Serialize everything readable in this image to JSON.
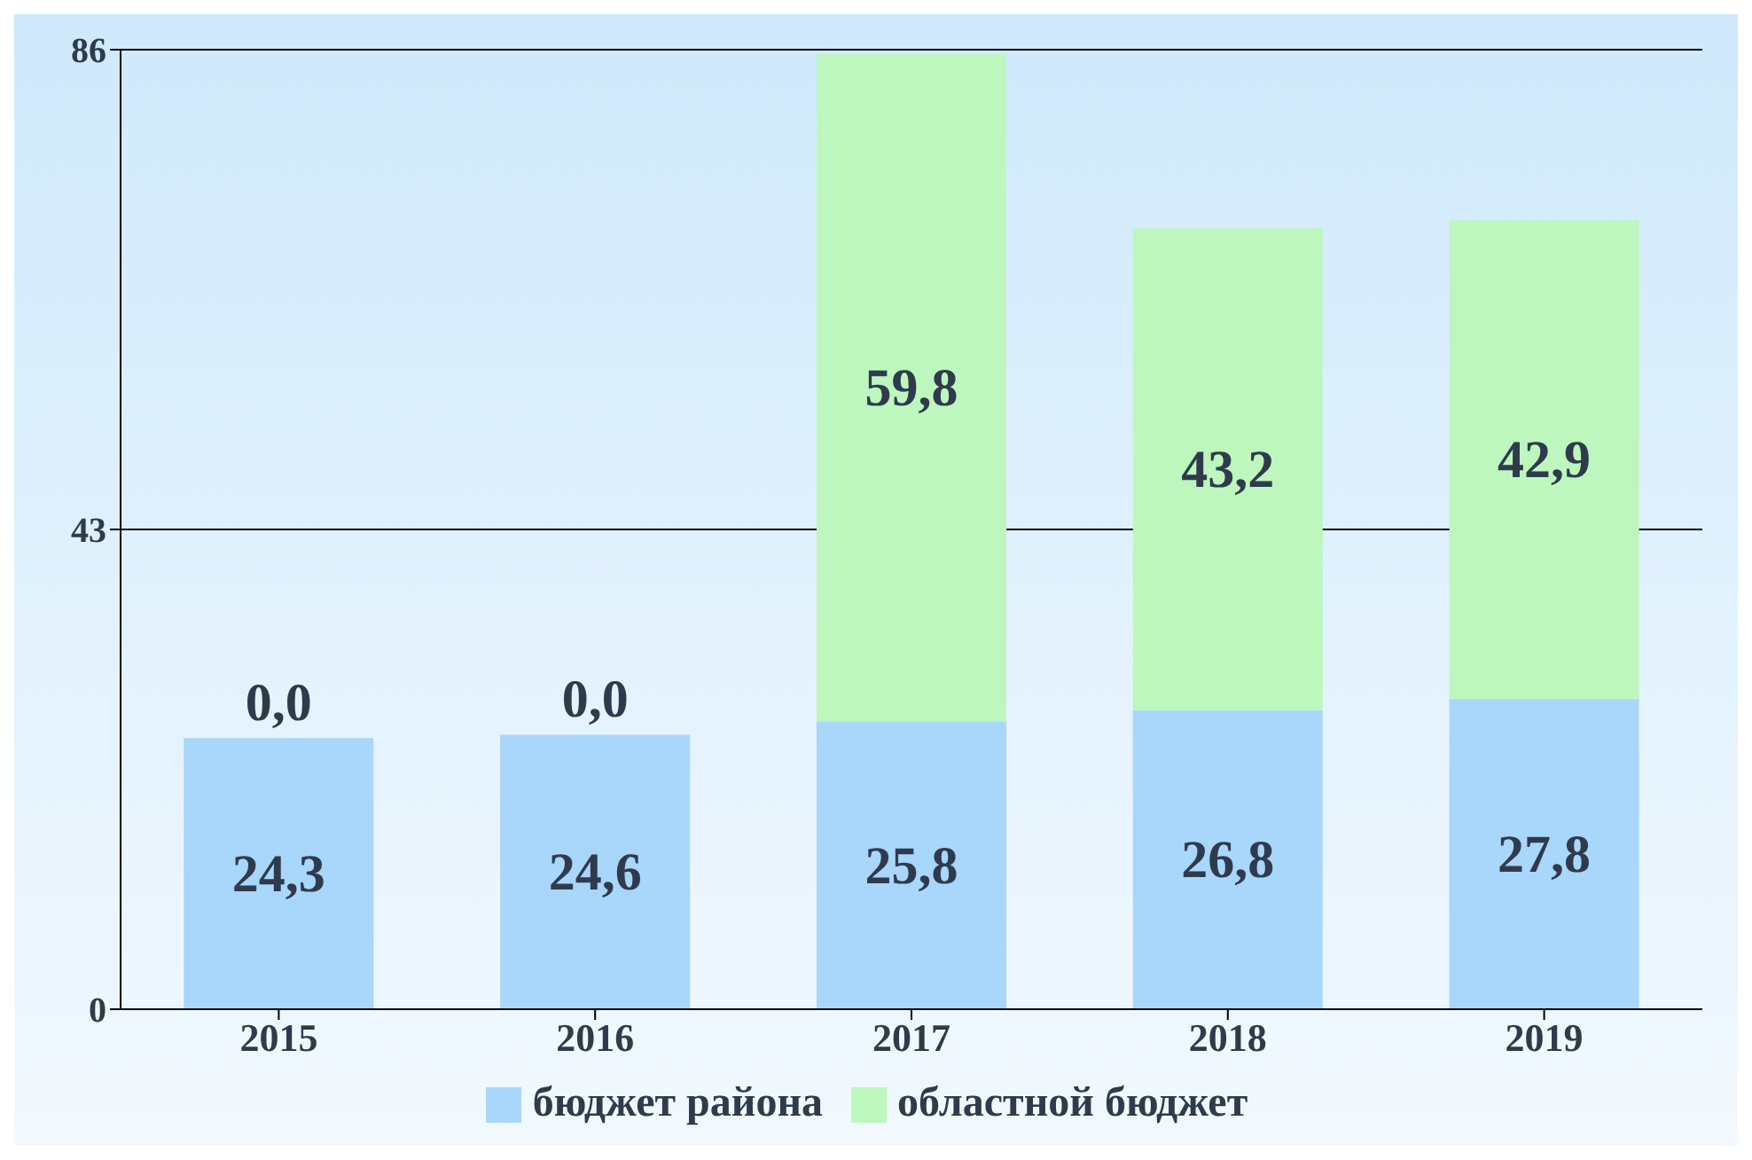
{
  "chart_data": {
    "type": "bar",
    "stacked": true,
    "categories": [
      "2015",
      "2016",
      "2017",
      "2018",
      "2019"
    ],
    "series": [
      {
        "name": "бюджет района",
        "color": "#a9d6fb",
        "values": [
          24.3,
          24.6,
          25.8,
          26.8,
          27.8
        ],
        "value_labels": [
          "24,3",
          "24,6",
          "25,8",
          "26,8",
          "27,8"
        ]
      },
      {
        "name": "областной бюджет",
        "color": "#bdf7bd",
        "values": [
          0,
          0,
          59.8,
          43.2,
          42.9
        ],
        "value_labels": [
          "0,0",
          "0,0",
          "59,8",
          "43,2",
          "42,9"
        ]
      }
    ],
    "ylim": [
      0,
      86
    ],
    "yticks": [
      0,
      43,
      86
    ],
    "grid": "y",
    "legend": "bottom"
  }
}
